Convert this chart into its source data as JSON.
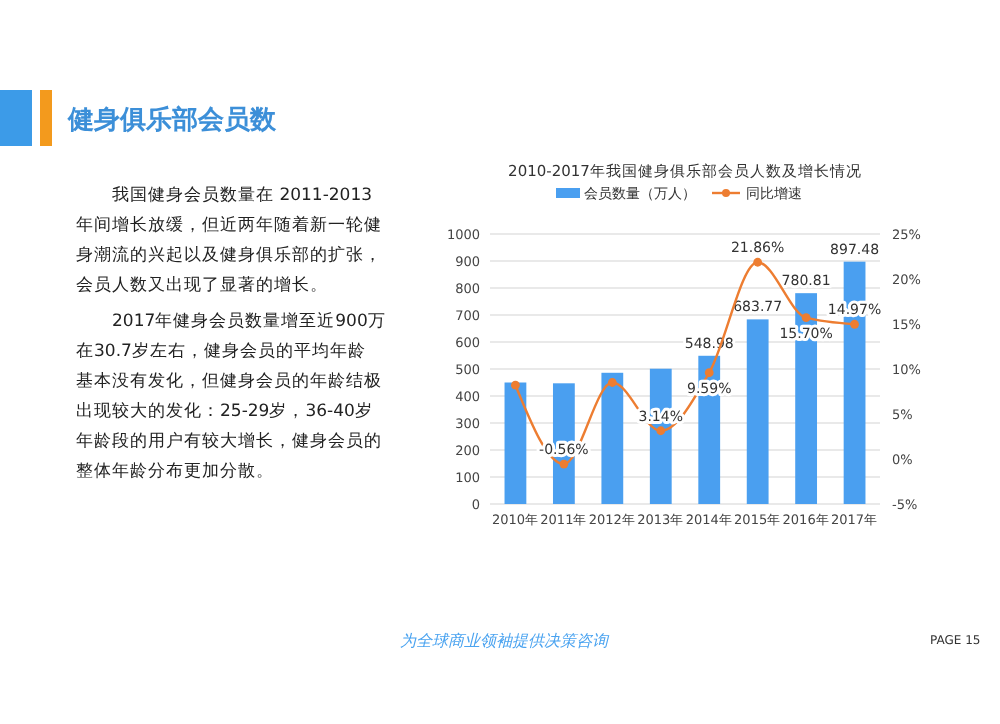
{
  "chart_data": {
    "type": "bar",
    "title": "2010-2017年我国健身俱乐部会员人数及增长情况",
    "categories": [
      "2010年",
      "2011年",
      "2012年",
      "2013年",
      "2014年",
      "2015年",
      "2016年",
      "2017年"
    ],
    "series": [
      {
        "name": "会员数量（万人）",
        "color": "#4a9ff0",
        "values": [
          450,
          447,
          486,
          501,
          548.98,
          683.77,
          780.81,
          897.48
        ],
        "value_labels": [
          null,
          null,
          null,
          null,
          "548.98",
          "683.77",
          "780.81",
          "897.48"
        ]
      },
      {
        "type": "line",
        "name": "同比增速",
        "color": "#ed7d31",
        "axis": "y2",
        "values": [
          8.2,
          -0.56,
          8.5,
          3.14,
          9.59,
          21.86,
          15.7,
          14.97
        ],
        "value_labels": [
          null,
          "-0.56%",
          null,
          "3.14%",
          "9.59%",
          "21.86%",
          "15.70%",
          "14.97%"
        ]
      }
    ],
    "ylim": [
      0,
      1000
    ],
    "yticks": [
      0,
      100,
      200,
      300,
      400,
      500,
      600,
      700,
      800,
      900,
      1000
    ],
    "y2lim": [
      -5,
      25
    ],
    "y2ticks": [
      {
        "value": -5,
        "label": "-5%"
      },
      {
        "value": 0,
        "label": "0%"
      },
      {
        "value": 5,
        "label": "5%"
      },
      {
        "value": 10,
        "label": "10%"
      },
      {
        "value": 15,
        "label": "15%"
      },
      {
        "value": 20,
        "label": "20%"
      },
      {
        "value": 25,
        "label": "25%"
      }
    ],
    "grid": "y",
    "legend": "top",
    "marker": "circle",
    "annotations": [
      "健身俱乐部会员数",
      "我国健身会员数量在 2011-2013年间增长放缓，但近两年随着新一轮健身潮流的兴起以及健身俱乐部的扩张，会员人数又出现了显著的增长。",
      "2017年健身会员数量增至近900万",
      "在30.7岁左右，健身会员的平均年龄基本没有发化，但健身会员的年龄结极出现较大的发化：25-29岁，36-40岁年龄段的用户有较大增长，健身会员的整体年龄分布更加分散。",
      "为全球商业领袖提供决策咨询",
      "PAGE 15"
    ]
  }
}
